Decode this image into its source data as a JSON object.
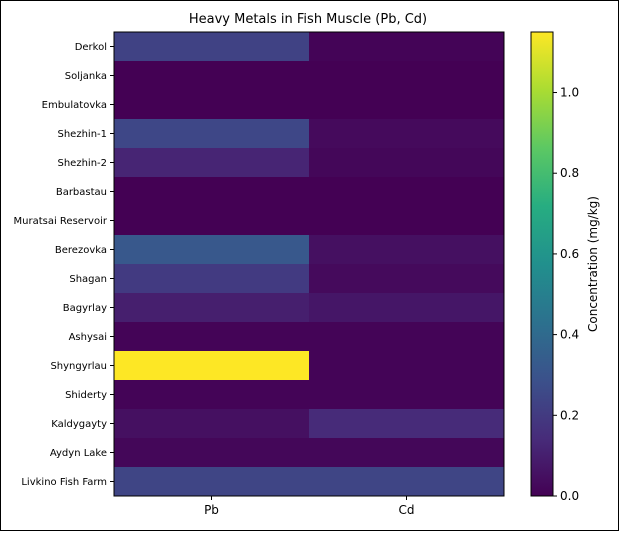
{
  "chart_data": {
    "type": "heatmap",
    "title": "Heavy Metals in Fish Muscle (Pb, Cd)",
    "x_categories": [
      "Pb",
      "Cd"
    ],
    "y_categories": [
      "Derkol",
      "Soljanka",
      "Embulatovka",
      "Shezhin-1",
      "Shezhin-2",
      "Barbastau",
      "Muratsai Reservoir",
      "Berezovka",
      "Shagan",
      "Bagyrlay",
      "Ashysai",
      "Shyngyrlau",
      "Shiderty",
      "Kaldygayty",
      "Aydyn Lake",
      "Livkino Fish Farm"
    ],
    "values": [
      [
        0.23,
        0.01
      ],
      [
        0.0,
        0.0
      ],
      [
        0.0,
        0.0
      ],
      [
        0.25,
        0.03
      ],
      [
        0.12,
        0.02
      ],
      [
        0.0,
        0.0
      ],
      [
        0.0,
        0.0
      ],
      [
        0.32,
        0.05
      ],
      [
        0.2,
        0.03
      ],
      [
        0.1,
        0.07
      ],
      [
        0.01,
        0.01
      ],
      [
        1.15,
        0.01
      ],
      [
        0.01,
        0.01
      ],
      [
        0.05,
        0.14
      ],
      [
        0.02,
        0.02
      ],
      [
        0.24,
        0.24
      ]
    ],
    "colormap": "viridis",
    "vmin": 0.0,
    "vmax": 1.15,
    "colorbar": {
      "label": "Concentration (mg/kg)",
      "ticks": [
        "0.0",
        "0.2",
        "0.4",
        "0.6",
        "0.8",
        "1.0"
      ],
      "tick_values": [
        0.0,
        0.2,
        0.4,
        0.6,
        0.8,
        1.0
      ],
      "placement": "right"
    },
    "grid": false
  }
}
